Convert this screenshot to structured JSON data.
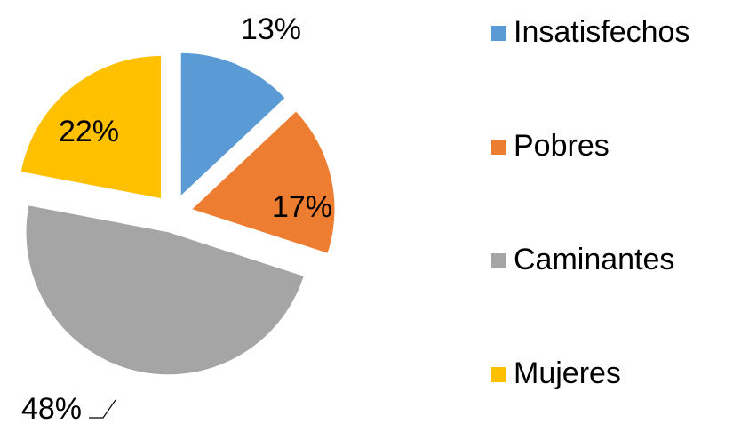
{
  "chart_data": {
    "type": "pie",
    "categories": [
      "Insatisfechos",
      "Pobres",
      "Caminantes",
      "Mujeres"
    ],
    "values": [
      13,
      17,
      48,
      22
    ],
    "value_labels": [
      "13%",
      "17%",
      "48%",
      "22%"
    ],
    "colors": [
      "#5b9bd5",
      "#ed7d31",
      "#a5a5a5",
      "#ffc000"
    ],
    "legend": "right"
  }
}
